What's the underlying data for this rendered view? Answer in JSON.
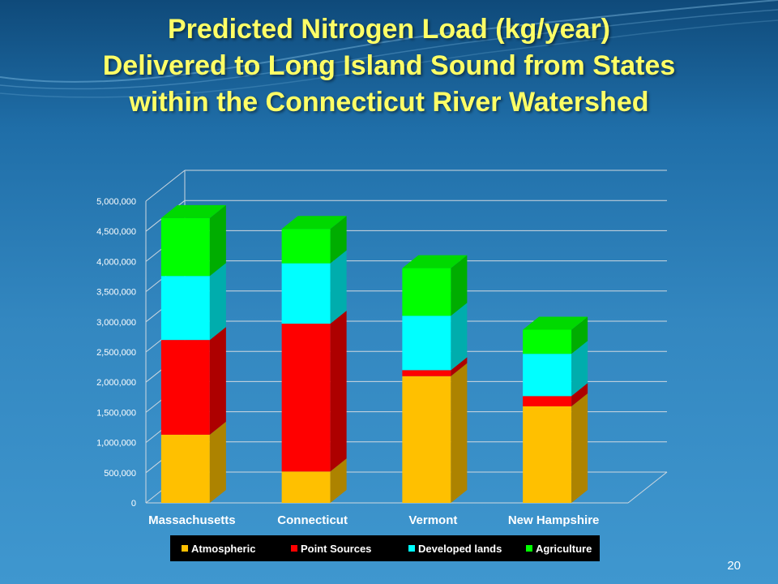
{
  "slide": {
    "title_lines": [
      "Predicted Nitrogen Load (kg/year)",
      "Delivered to Long Island Sound from States",
      "within the Connecticut River Watershed"
    ],
    "page_number": "20"
  },
  "chart_data": {
    "type": "bar",
    "stacked": true,
    "three_d": true,
    "categories": [
      "Massachusetts",
      "Connecticut",
      "Vermont",
      "New Hampshire"
    ],
    "series": [
      {
        "name": "Atmospheric",
        "color": "#ffc000",
        "values": [
          1130000,
          520000,
          2100000,
          1600000
        ]
      },
      {
        "name": "Point Sources",
        "color": "#ff0000",
        "values": [
          1570000,
          2450000,
          100000,
          170000
        ]
      },
      {
        "name": "Developed lands",
        "color": "#00ffff",
        "values": [
          1060000,
          1000000,
          900000,
          700000
        ]
      },
      {
        "name": "Agriculture",
        "color": "#00ff00",
        "values": [
          960000,
          570000,
          790000,
          400000
        ]
      }
    ],
    "ylim": [
      0,
      5000000
    ],
    "yticks": [
      "0",
      "500,000",
      "1,000,000",
      "1,500,000",
      "2,000,000",
      "2,500,000",
      "3,000,000",
      "3,500,000",
      "4,000,000",
      "4,500,000",
      "5,000,000"
    ],
    "grid": true,
    "legend_position": "bottom"
  }
}
